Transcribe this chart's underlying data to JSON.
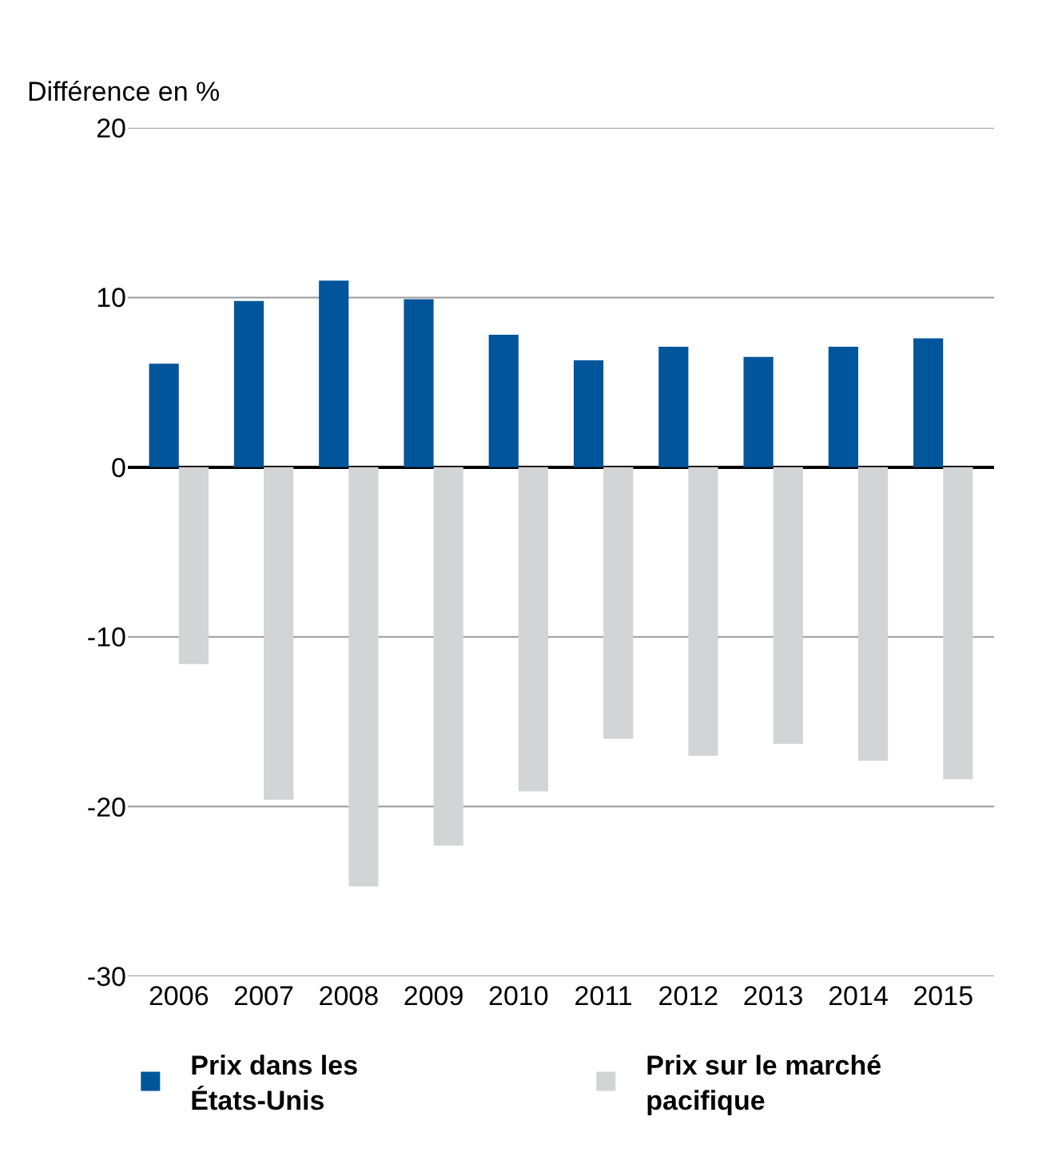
{
  "chart_data": {
    "type": "bar",
    "ylabel": "Différence en %",
    "categories": [
      "2006",
      "2007",
      "2008",
      "2009",
      "2010",
      "2011",
      "2012",
      "2013",
      "2014",
      "2015"
    ],
    "series": [
      {
        "name": "Prix dans les États-Unis",
        "color": "#00559b",
        "values": [
          6.1,
          9.8,
          11.0,
          9.9,
          7.8,
          6.3,
          7.1,
          6.5,
          7.1,
          7.6
        ]
      },
      {
        "name": "Prix sur le marché pacifique",
        "color": "#d3d4d6",
        "values": [
          -11.6,
          -19.6,
          -24.7,
          -22.3,
          -19.1,
          -16.0,
          -17.0,
          -16.3,
          -17.3,
          -18.4
        ]
      }
    ],
    "ylim": [
      -30,
      20
    ],
    "yticks": [
      -30,
      -20,
      -10,
      0,
      10,
      20
    ],
    "grid": "y",
    "legend": "bottom"
  }
}
